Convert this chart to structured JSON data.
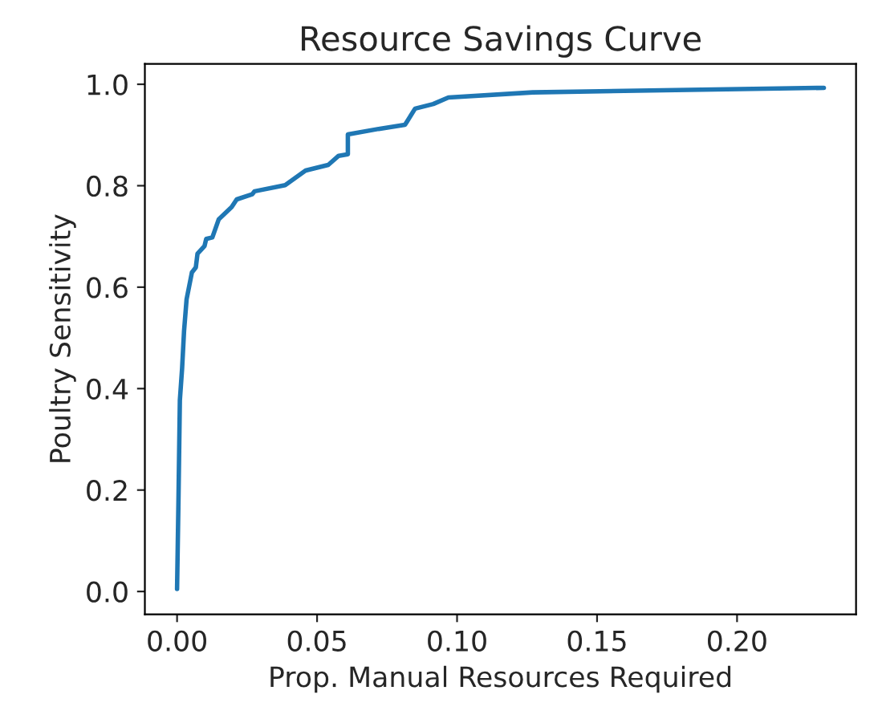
{
  "chart_data": {
    "type": "line",
    "title": "Resource Savings Curve",
    "xlabel": "Prop. Manual Resources Required",
    "ylabel": "Poultry Sensitivity",
    "series": [
      {
        "color": "#1f77b4",
        "x": [
          0.0,
          0.0005,
          0.001,
          0.0018,
          0.0025,
          0.0034,
          0.0053,
          0.0067,
          0.0073,
          0.0098,
          0.0104,
          0.0126,
          0.0149,
          0.0195,
          0.0213,
          0.0268,
          0.0277,
          0.0386,
          0.0459,
          0.054,
          0.0577,
          0.061,
          0.061,
          0.072,
          0.0814,
          0.085,
          0.0915,
          0.0969,
          0.127,
          0.231
        ],
        "values": [
          0.005,
          0.18,
          0.377,
          0.44,
          0.514,
          0.576,
          0.629,
          0.639,
          0.666,
          0.681,
          0.695,
          0.698,
          0.734,
          0.758,
          0.773,
          0.783,
          0.789,
          0.801,
          0.83,
          0.841,
          0.859,
          0.862,
          0.901,
          0.912,
          0.92,
          0.952,
          0.961,
          0.974,
          0.984,
          0.993
        ]
      }
    ],
    "xlim": [
      -0.0115,
      0.2425
    ],
    "ylim": [
      -0.045,
      1.04
    ],
    "xticks": [
      {
        "value": 0,
        "label": "0.00"
      },
      {
        "value": 0.05,
        "label": "0.05"
      },
      {
        "value": 0.1,
        "label": "0.10"
      },
      {
        "value": 0.15,
        "label": "0.15"
      },
      {
        "value": 0.2,
        "label": "0.20"
      }
    ],
    "yticks": [
      {
        "value": 0,
        "label": "0.0"
      },
      {
        "value": 0.2,
        "label": "0.2"
      },
      {
        "value": 0.4,
        "label": "0.4"
      },
      {
        "value": 0.6,
        "label": "0.6"
      },
      {
        "value": 0.8,
        "label": "0.8"
      },
      {
        "value": 1.0,
        "label": "1.0"
      }
    ],
    "marker": "none",
    "line_style": "solid"
  }
}
